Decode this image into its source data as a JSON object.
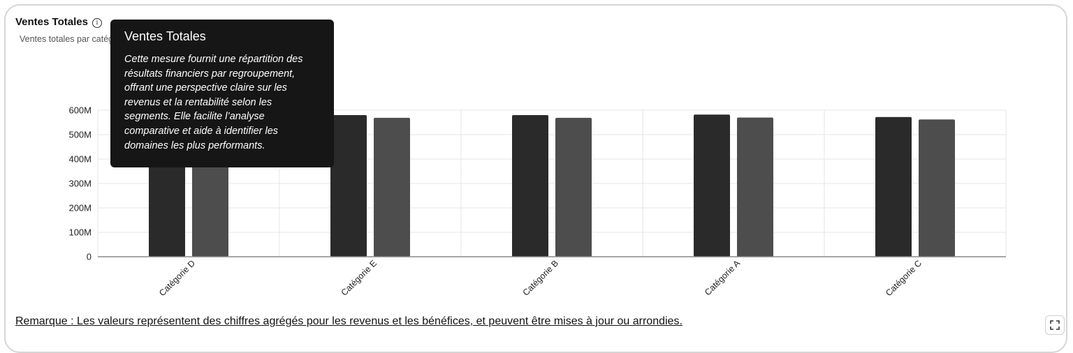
{
  "header": {
    "title": "Ventes Totales",
    "subtitle": "Ventes totales par catégorie"
  },
  "tooltip": {
    "title": "Ventes Totales",
    "body": "Cette mesure fournit une répartition des résultats financiers par regroupement, offrant une perspective claire sur les revenus et la rentabilité selon les segments. Elle facilite l’analyse comparative et aide à identifier les domaines les plus performants."
  },
  "note": "Remarque : Les valeurs représentent des chiffres agrégés pour les revenus et les bénéfices, et peuvent être mises à jour ou arrondies.",
  "icons": {
    "info": "info-icon",
    "expand": "expand-icon"
  },
  "colors": {
    "series1": "#2a2a2a",
    "series2": "#4d4d4d",
    "grid": "#e6e6e6",
    "axis": "#888888"
  },
  "chart_data": {
    "type": "bar",
    "categories": [
      "Catégorie D",
      "Catégorie E",
      "Catégorie B",
      "Catégorie A",
      "Catégorie C"
    ],
    "series": [
      {
        "values": [
          580000000,
          580000000,
          580000000,
          582000000,
          572000000
        ]
      },
      {
        "values": [
          570000000,
          569000000,
          569000000,
          570000000,
          562000000
        ]
      }
    ],
    "ylim": [
      0,
      600000000
    ],
    "yticks": [
      "0",
      "100M",
      "200M",
      "300M",
      "400M",
      "500M",
      "600M"
    ],
    "grid": true,
    "legend": "none"
  }
}
